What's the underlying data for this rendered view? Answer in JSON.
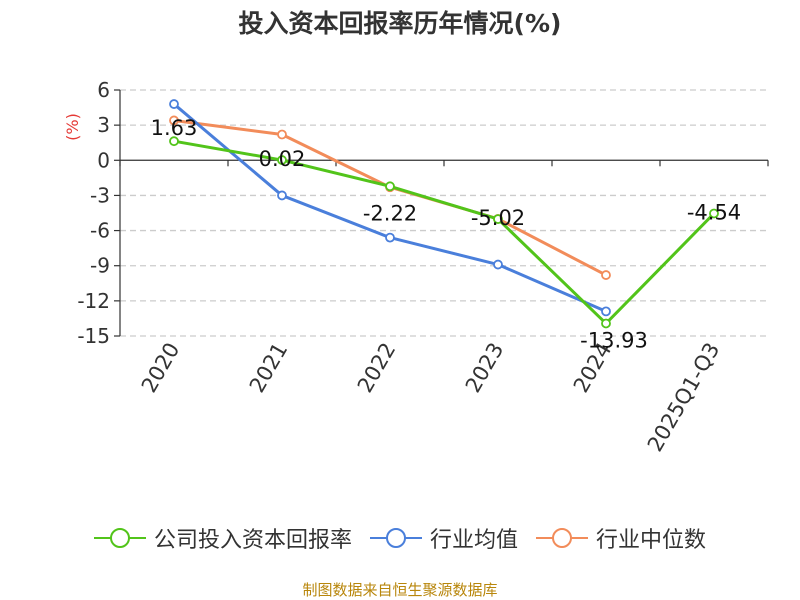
{
  "chart_data": {
    "type": "line",
    "title": "投入资本回报率历年情况(%)",
    "ylabel": "(%)",
    "categories": [
      "2020",
      "2021",
      "2022",
      "2023",
      "2024",
      "2025Q1-Q3"
    ],
    "ylim": [
      -15,
      6
    ],
    "yticks": [
      6,
      3,
      0,
      -3,
      -6,
      -9,
      -12,
      -15
    ],
    "grid": true,
    "legend_position": "bottom",
    "series": [
      {
        "name": "公司投入资本回报率",
        "color": "#52c41a",
        "values": [
          1.63,
          0.02,
          -2.22,
          -5.02,
          -13.93,
          -4.54
        ],
        "labels": [
          "1.63",
          "0.02",
          "-2.22",
          "-5.02",
          "-13.93",
          "-4.54"
        ]
      },
      {
        "name": "行业均值",
        "color": "#4a7fdb",
        "values": [
          4.8,
          -3.0,
          -6.6,
          -8.9,
          -12.9,
          null
        ]
      },
      {
        "name": "行业中位数",
        "color": "#f28c5a",
        "values": [
          3.4,
          2.2,
          -2.3,
          -5.0,
          -9.8,
          null
        ]
      }
    ],
    "source": "制图数据来自恒生聚源数据库"
  }
}
